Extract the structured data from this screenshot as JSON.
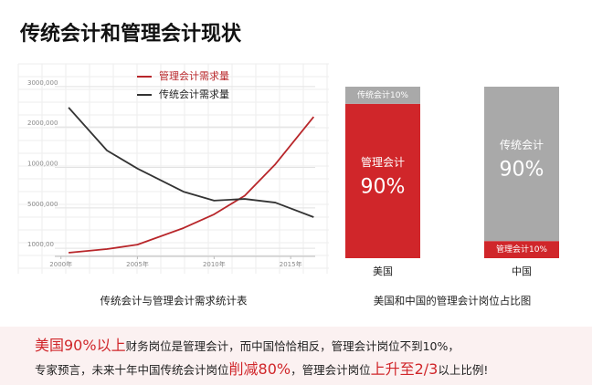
{
  "title": "传统会计和管理会计现状",
  "chart_data": [
    {
      "type": "line",
      "caption": "传统会计与管理会计需求统计表",
      "x": [
        2000.5,
        2003,
        2005,
        2008,
        2010,
        2012,
        2014,
        2016.5
      ],
      "xlim": [
        1999.6,
        2016.6
      ],
      "xticks": [
        {
          "value": 2000,
          "label": "2000年"
        },
        {
          "value": 2005,
          "label": "2005年"
        },
        {
          "value": 2010,
          "label": "2010年"
        },
        {
          "value": 2015,
          "label": "2015年"
        }
      ],
      "ylim": [
        0.8,
        5.2
      ],
      "yticks": [
        {
          "value": 5,
          "label": "3000,000"
        },
        {
          "value": 4,
          "label": "2000,000"
        },
        {
          "value": 3,
          "label": "1000,000"
        },
        {
          "value": 2,
          "label": "5000,000"
        },
        {
          "value": 1,
          "label": "1000,00"
        }
      ],
      "legend": "top",
      "series": [
        {
          "name": "管理会计需求量",
          "color": "#b8262a",
          "values": [
            0.89,
            0.98,
            1.09,
            1.5,
            1.84,
            2.3,
            3.08,
            4.25
          ]
        },
        {
          "name": "传统会计需求量",
          "color": "#333333",
          "values": [
            4.48,
            3.42,
            2.97,
            2.4,
            2.18,
            2.22,
            2.13,
            1.77
          ]
        }
      ]
    },
    {
      "type": "stacked-bar",
      "caption": "美国和中国的管理会计岗位占比图",
      "categories": [
        "美国",
        "中国"
      ],
      "ylim": [
        0,
        100
      ],
      "series": [
        {
          "name": "管理会计",
          "color": "#d0262a",
          "values": [
            90,
            10
          ],
          "value_labels": [
            "90%",
            "管理会计10%"
          ]
        },
        {
          "name": "传统会计",
          "color": "#a9a9a9",
          "values": [
            10,
            90
          ],
          "value_labels": [
            "传统会计10%",
            "90%"
          ]
        }
      ]
    }
  ],
  "footer": {
    "lines": [
      [
        {
          "text": "美国90%以上",
          "highlight": true
        },
        {
          "text": "财务岗位是管理会计，而中国恰恰相反，管理会计岗位不到10%，",
          "highlight": false
        }
      ],
      [
        {
          "text": "专家预言，未来十年中国传统会计岗位",
          "highlight": false
        },
        {
          "text": "削减80%",
          "highlight": true
        },
        {
          "text": "，管理会计岗位",
          "highlight": false
        },
        {
          "text": "上升至2/3",
          "highlight": true
        },
        {
          "text": "以上比例!",
          "highlight": false
        }
      ]
    ]
  }
}
